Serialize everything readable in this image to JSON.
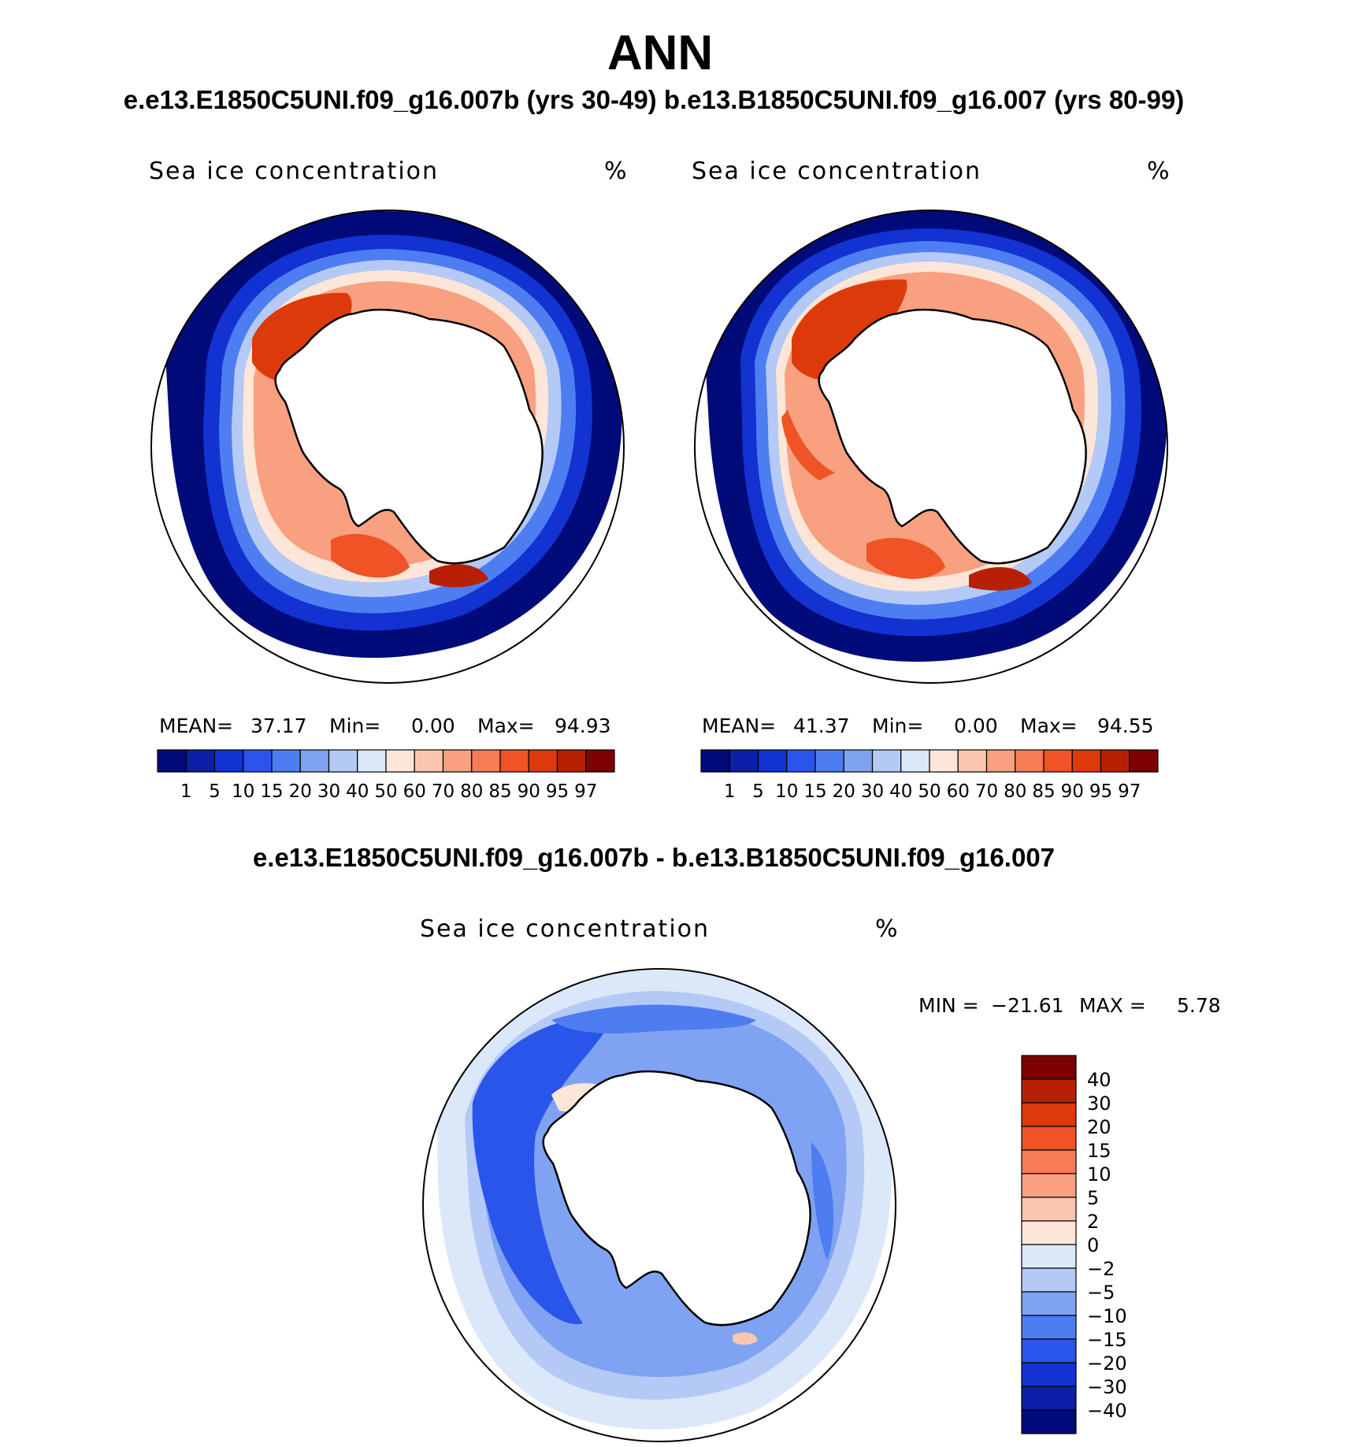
{
  "title": "ANN",
  "subtitle": "e.e13.E1850C5UNI.f09_g16.007b (yrs 30-49)  b.e13.B1850C5UNI.f09_g16.007 (yrs 80-99)",
  "diff_title": "e.e13.E1850C5UNI.f09_g16.007b - b.e13.B1850C5UNI.f09_g16.007",
  "panels": [
    {
      "variable": "Sea ice concentration",
      "units": "%",
      "mean_label": "MEAN=",
      "mean": "37.17",
      "min_label": "Min=",
      "min": "0.00",
      "max_label": "Max=",
      "max": "94.93"
    },
    {
      "variable": "Sea ice concentration",
      "units": "%",
      "mean_label": "MEAN=",
      "mean": "41.37",
      "min_label": "Min=",
      "min": "0.00",
      "max_label": "Max=",
      "max": "94.55"
    }
  ],
  "diff_panel": {
    "variable": "Sea ice concentration",
    "units": "%",
    "min_label": "MIN =",
    "min": "−21.61",
    "max_label": "MAX =",
    "max": "5.78"
  },
  "colorbar_main": {
    "ticks": [
      "1",
      "5",
      "10",
      "15",
      "20",
      "30",
      "40",
      "50",
      "60",
      "70",
      "80",
      "85",
      "90",
      "95",
      "97"
    ],
    "colors": [
      "#000a78",
      "#0a1ea8",
      "#1232d2",
      "#2a55eb",
      "#4d7df0",
      "#7fa3f2",
      "#b4c9f5",
      "#dbe8fa",
      "#fde6d8",
      "#fbc6af",
      "#f8a080",
      "#f57c56",
      "#ef5326",
      "#dc3a0a",
      "#b82006",
      "#7d0000"
    ]
  },
  "colorbar_diff": {
    "labels": [
      "40",
      "30",
      "20",
      "15",
      "10",
      "5",
      "2",
      "0",
      "−2",
      "−5",
      "−10",
      "−15",
      "−20",
      "−30",
      "−40"
    ],
    "colors": [
      "#7d0000",
      "#b82006",
      "#dc3a0a",
      "#ef5326",
      "#f57c56",
      "#f8a080",
      "#fbc6af",
      "#fde6d8",
      "#dbe8fa",
      "#b4c9f5",
      "#7fa3f2",
      "#4d7df0",
      "#2a55eb",
      "#1232d2",
      "#0a1ea8",
      "#000a78"
    ]
  },
  "palette": {
    "ice_edge": "#000a78",
    "ice_dark_blue": "#1232d2",
    "ice_mid_blue": "#4d7df0",
    "ice_light_blue": "#b4c9f5",
    "ice_pale": "#fde6d8",
    "ice_salmon": "#f8a080",
    "ice_red": "#dc3a0a",
    "diff_blue": "#2a55eb",
    "diff_light": "#b4c9f5"
  }
}
